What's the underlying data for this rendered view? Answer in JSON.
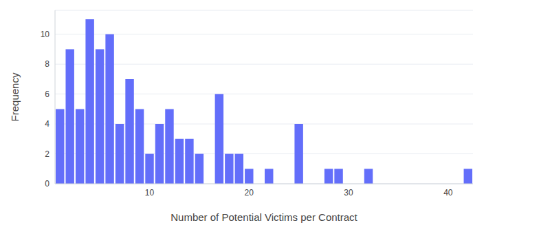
{
  "chart_data": {
    "type": "histogram",
    "x_label": "Number of Potential Victims per Contract",
    "y_label": "Frequency",
    "bins": [
      0.5,
      1.5,
      2.5,
      3.5,
      4.5,
      5.5,
      6.5,
      7.5,
      8.5,
      9.5,
      10.5,
      11.5,
      12.5,
      13.5,
      14.5,
      15.5,
      16.5,
      17.5,
      18.5,
      19.5,
      20.5,
      21.5,
      22.5,
      23.5,
      24.5,
      25.5,
      26.5,
      27.5,
      28.5,
      29.5,
      30.5,
      31.5,
      32.5,
      33.5,
      34.5,
      35.5,
      36.5,
      37.5,
      38.5,
      39.5,
      40.5,
      41.5,
      42.5
    ],
    "values": [
      5,
      9,
      5,
      11,
      9,
      10,
      4,
      7,
      5,
      2,
      4,
      5,
      3,
      3,
      2,
      0,
      6,
      2,
      2,
      1,
      0,
      1,
      0,
      0,
      4,
      0,
      0,
      1,
      1,
      0,
      0,
      1,
      0,
      0,
      0,
      0,
      0,
      0,
      0,
      0,
      0,
      1
    ],
    "color": "#636efa",
    "xlim": [
      0.5,
      42.5
    ],
    "xticks": [
      10,
      20,
      30,
      40
    ],
    "ylim": [
      0,
      11.6
    ],
    "yticks": [
      0,
      2,
      4,
      6,
      8,
      10
    ],
    "grid": true
  }
}
